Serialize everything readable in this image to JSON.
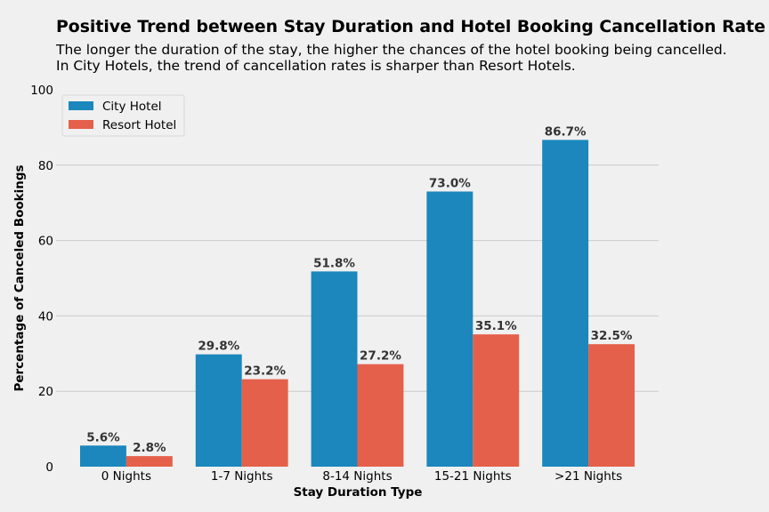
{
  "chart_data": {
    "type": "bar",
    "title": "Positive Trend between Stay Duration and Hotel Booking Cancellation Rate",
    "subtitle_lines": [
      "The longer the duration of the stay, the higher the chances of the hotel booking being cancelled.",
      "In City Hotels, the trend of cancellation rates is sharper than Resort Hotels."
    ],
    "xlabel": "Stay Duration Type",
    "ylabel": "Percentage of Canceled Bookings",
    "categories": [
      "0 Nights",
      "1-7 Nights",
      "8-14 Nights",
      "15-21 Nights",
      ">21 Nights"
    ],
    "series": [
      {
        "name": "City Hotel",
        "color": "#1b87bc",
        "values": [
          5.6,
          29.8,
          51.8,
          73.0,
          86.7
        ],
        "labels": [
          "5.6%",
          "29.8%",
          "51.8%",
          "73.0%",
          "86.7%"
        ]
      },
      {
        "name": "Resort Hotel",
        "color": "#e5604a",
        "values": [
          2.8,
          23.2,
          27.2,
          35.1,
          32.5
        ],
        "labels": [
          "2.8%",
          "23.2%",
          "27.2%",
          "35.1%",
          "32.5%"
        ]
      }
    ],
    "ylim": [
      0,
      100
    ],
    "yticks": [
      0,
      20,
      40,
      60,
      80,
      100
    ],
    "grid": true,
    "legend_position": "top-left"
  }
}
